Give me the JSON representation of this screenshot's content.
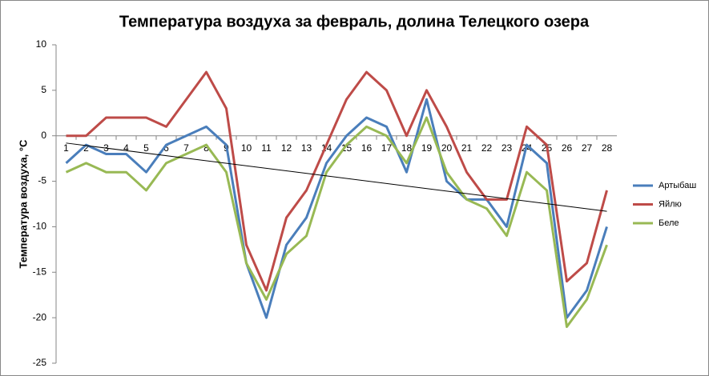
{
  "chart_data": {
    "type": "line",
    "title": "Температура воздуха за февраль, долина Телецкого озера",
    "y_label": "Температура воздуха, °С",
    "categories": [
      "1",
      "2",
      "3",
      "4",
      "5",
      "6",
      "7",
      "8",
      "9",
      "10",
      "11",
      "12",
      "13",
      "14",
      "15",
      "16",
      "17",
      "18",
      "19",
      "20",
      "21",
      "22",
      "23",
      "24",
      "25",
      "26",
      "27",
      "28"
    ],
    "series": [
      {
        "name": "Артыбаш",
        "color": "#4a7ebb",
        "values": [
          -3,
          -1,
          -2,
          -2,
          -4,
          -1,
          0,
          1,
          -1,
          -14,
          -20,
          -12,
          -9,
          -3,
          0,
          2,
          1,
          -4,
          4,
          -5,
          -7,
          -7,
          -10,
          -1,
          -3,
          -20,
          -17,
          -10
        ]
      },
      {
        "name": "Яйлю",
        "color": "#be4b48",
        "values": [
          0,
          0,
          2,
          2,
          2,
          1,
          4,
          7,
          3,
          -12,
          -17,
          -9,
          -6,
          -1,
          4,
          7,
          5,
          0,
          5,
          1,
          -4,
          -7,
          -7,
          1,
          -1,
          -16,
          -14,
          -6
        ]
      },
      {
        "name": "Беле",
        "color": "#98b954",
        "values": [
          -4,
          -3,
          -4,
          -4,
          -6,
          -3,
          -2,
          -1,
          -4,
          -14,
          -18,
          -13,
          -11,
          -4,
          -1,
          1,
          0,
          -3,
          2,
          -4,
          -7,
          -8,
          -11,
          -4,
          -6,
          -21,
          -18,
          -12
        ]
      }
    ],
    "trendline": {
      "color": "#000000",
      "x": [
        1,
        28
      ],
      "values": [
        -0.8,
        -8.3
      ]
    },
    "ylim": [
      -25,
      10
    ],
    "yticks": [
      -25,
      -20,
      -15,
      -10,
      -5,
      0,
      5,
      10
    ],
    "grid": false,
    "legend": "right"
  }
}
